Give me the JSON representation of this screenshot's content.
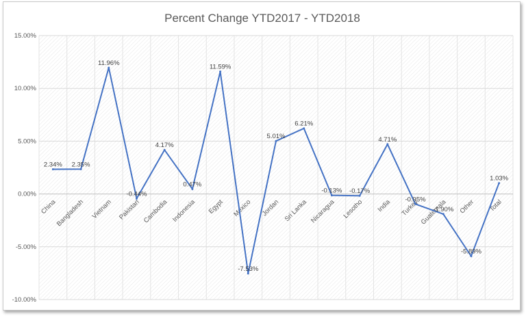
{
  "chart_data": {
    "type": "line",
    "title": "Percent Change YTD2017 - YTD2018",
    "xlabel": "",
    "ylabel": "",
    "ylim": [
      -10,
      15
    ],
    "yticks": [
      15,
      10,
      5,
      0,
      -5,
      -10
    ],
    "ytick_labels": [
      "15.00%",
      "10.00%",
      "5.00%",
      "0.00%",
      "-5.00%",
      "-10.00%"
    ],
    "grid": true,
    "legend": "none",
    "line_color": "#4472c4",
    "categories": [
      "China",
      "Bangladesh",
      "Vietnam",
      "Pakistan",
      "Cambodia",
      "Indonesia",
      "Egypt",
      "Mexico",
      "Jordan",
      "Sri Lanka",
      "Nicaragua",
      "Lesotho",
      "India",
      "Turkey",
      "Guatemala",
      "Other",
      "Total"
    ],
    "values": [
      2.34,
      2.35,
      11.96,
      -0.44,
      4.17,
      0.47,
      11.59,
      -7.53,
      5.01,
      6.21,
      -0.13,
      -0.17,
      4.71,
      -0.95,
      -1.9,
      -5.89,
      1.03
    ],
    "data_labels": [
      "2.34%",
      "2.35%",
      "11.96%",
      "-0.44%",
      "4.17%",
      "0.47%",
      "11.59%",
      "-7.53%",
      "5.01%",
      "6.21%",
      "-0.13%",
      "-0.17%",
      "4.71%",
      "-0.95%",
      "-1.90%",
      "-5.89%",
      "1.03%"
    ]
  }
}
